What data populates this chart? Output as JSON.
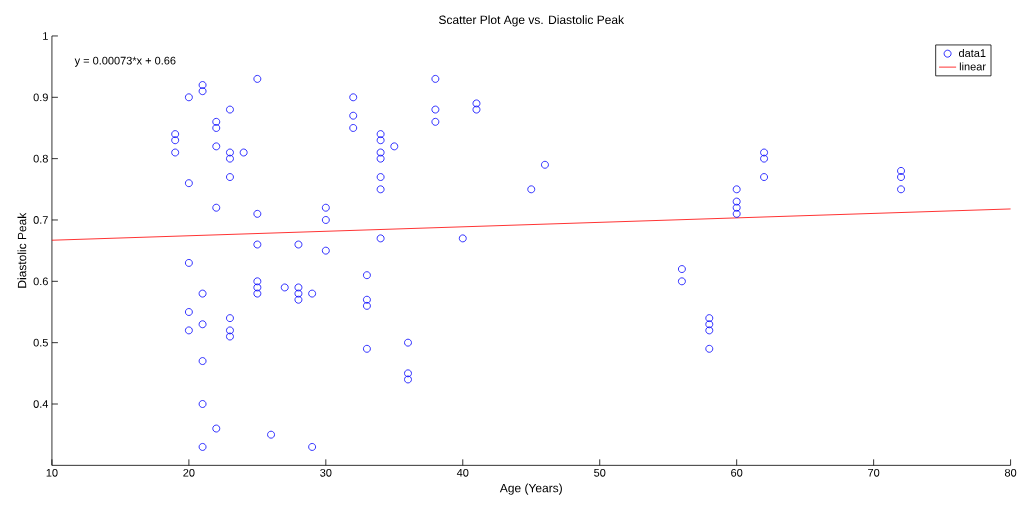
{
  "chart_data": {
    "type": "scatter",
    "title": "Scatter Plot Age vs. Diastolic Peak",
    "xlabel": "Age (Years)",
    "ylabel": "Diastolic Peak",
    "annotations": [
      "y = 0.00073*x + 0.66"
    ],
    "xlim": [
      10,
      80
    ],
    "xticks": [
      10,
      20,
      30,
      40,
      50,
      60,
      70,
      80
    ],
    "ylim": [
      0.3,
      1
    ],
    "yticks": [
      0.4,
      0.5,
      0.6,
      0.7,
      0.8,
      0.9,
      1
    ],
    "grid": false,
    "legend": "top right",
    "marker": "circle",
    "series": [
      {
        "name": "data1",
        "color": "#0000ff",
        "x": [
          19,
          19,
          19,
          20,
          20,
          20,
          20,
          20,
          21,
          21,
          21,
          21,
          21,
          21,
          21,
          22,
          22,
          22,
          22,
          22,
          23,
          23,
          23,
          23,
          23,
          23,
          23,
          24,
          25,
          25,
          25,
          25,
          25,
          25,
          26,
          27,
          28,
          28,
          28,
          28,
          29,
          29,
          30,
          30,
          30,
          32,
          32,
          32,
          33,
          33,
          33,
          33,
          34,
          34,
          34,
          34,
          34,
          34,
          34,
          35,
          36,
          36,
          36,
          38,
          38,
          38,
          40,
          41,
          41,
          45,
          46,
          56,
          56,
          58,
          58,
          58,
          58,
          60,
          60,
          60,
          60,
          62,
          62,
          62,
          72,
          72,
          72
        ],
        "values": [
          0.84,
          0.83,
          0.81,
          0.9,
          0.76,
          0.63,
          0.55,
          0.52,
          0.92,
          0.91,
          0.58,
          0.53,
          0.47,
          0.4,
          0.33,
          0.86,
          0.85,
          0.82,
          0.72,
          0.36,
          0.88,
          0.81,
          0.8,
          0.77,
          0.54,
          0.52,
          0.51,
          0.81,
          0.93,
          0.71,
          0.66,
          0.6,
          0.59,
          0.58,
          0.35,
          0.59,
          0.66,
          0.59,
          0.58,
          0.57,
          0.58,
          0.33,
          0.72,
          0.7,
          0.65,
          0.9,
          0.87,
          0.85,
          0.61,
          0.57,
          0.56,
          0.49,
          0.84,
          0.83,
          0.81,
          0.8,
          0.77,
          0.75,
          0.67,
          0.82,
          0.5,
          0.45,
          0.44,
          0.93,
          0.88,
          0.86,
          0.67,
          0.89,
          0.88,
          0.75,
          0.79,
          0.62,
          0.6,
          0.54,
          0.53,
          0.52,
          0.49,
          0.75,
          0.73,
          0.72,
          0.71,
          0.81,
          0.8,
          0.77,
          0.78,
          0.77,
          0.75
        ]
      },
      {
        "name": "linear",
        "type": "line",
        "color": "#ff0000",
        "marker": "none",
        "line_style": "solid",
        "x": [
          10,
          80
        ],
        "values": [
          0.667,
          0.718
        ]
      }
    ]
  }
}
